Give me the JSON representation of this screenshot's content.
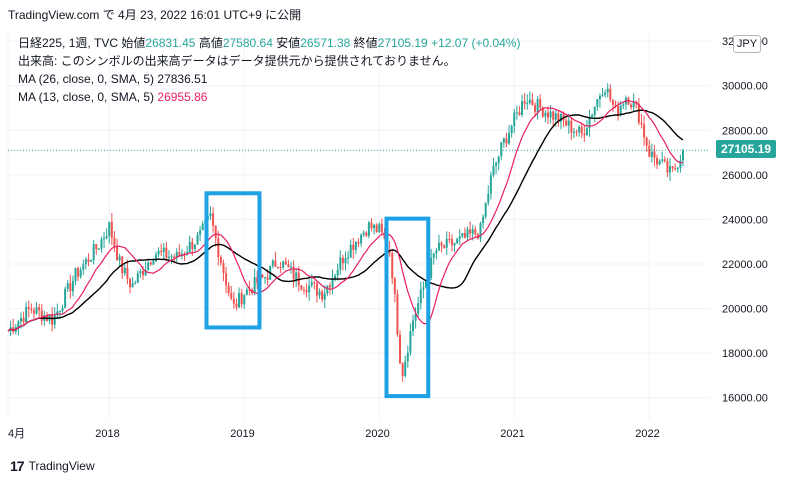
{
  "header": {
    "title_line": "TradingView.com で 4月 23, 2022 16:01 UTC+9 に公開"
  },
  "legend": {
    "symbol": "日経225, 1週, TVC",
    "open_label": "始値",
    "open": "26831.45",
    "high_label": "高値",
    "high": "27580.64",
    "low_label": "安値",
    "low": "26571.38",
    "close_label": "終値",
    "close": "27105.19",
    "change": "+12.07 (+0.04%)",
    "volume_note": "出来高: このシンボルの出来高データはデータ提供元から提供されておりません。",
    "ma26_label": "MA (26, close, 0, SMA, 5)",
    "ma26_value": "27836.51",
    "ma13_label": "MA (13, close, 0, SMA, 5)",
    "ma13_value": "26955.86"
  },
  "currency_button": "JPY",
  "last_price_tag": "27105.19",
  "footer": {
    "brand": "TradingView",
    "logo": "17"
  },
  "colors": {
    "up": "#26a69a",
    "down": "#ef5350",
    "ma26": "#000000",
    "ma13": "#e91e63",
    "highlight_box": "#1ea2e6"
  },
  "chart_data": {
    "type": "candlestick",
    "interval": "weekly",
    "currency": "JPY",
    "ylim": [
      15000,
      32500
    ],
    "y_ticks": [
      "16000.00",
      "18000.00",
      "20000.00",
      "22000.00",
      "24000.00",
      "26000.00",
      "28000.00",
      "30000.00",
      "32000.00"
    ],
    "x_ticks": [
      "4月",
      "2018",
      "2019",
      "2020",
      "2021",
      "2022"
    ],
    "last_close": 27105.19,
    "series": [
      {
        "name": "日経225 close (approx)",
        "points": [
          [
            "2017-04",
            19000
          ],
          [
            "2017-06",
            20000
          ],
          [
            "2017-08",
            19500
          ],
          [
            "2017-10",
            21500
          ],
          [
            "2017-12",
            22800
          ],
          [
            "2018-01",
            23700
          ],
          [
            "2018-02",
            21900
          ],
          [
            "2018-03",
            21000
          ],
          [
            "2018-05",
            22500
          ],
          [
            "2018-07",
            22300
          ],
          [
            "2018-09",
            23200
          ],
          [
            "2018-10",
            24100
          ],
          [
            "2018-11",
            22000
          ],
          [
            "2018-12",
            20000
          ],
          [
            "2019-01",
            20700
          ],
          [
            "2019-03",
            21500
          ],
          [
            "2019-04",
            22200
          ],
          [
            "2019-06",
            21200
          ],
          [
            "2019-08",
            20700
          ],
          [
            "2019-10",
            22500
          ],
          [
            "2019-12",
            23700
          ],
          [
            "2020-01",
            23500
          ],
          [
            "2020-02",
            22500
          ],
          [
            "2020-03",
            17000
          ],
          [
            "2020-04",
            19500
          ],
          [
            "2020-06",
            22600
          ],
          [
            "2020-08",
            23000
          ],
          [
            "2020-10",
            23500
          ],
          [
            "2020-11",
            26000
          ],
          [
            "2020-12",
            27400
          ],
          [
            "2021-02",
            29500
          ],
          [
            "2021-03",
            29100
          ],
          [
            "2021-05",
            28500
          ],
          [
            "2021-07",
            27800
          ],
          [
            "2021-09",
            30100
          ],
          [
            "2021-10",
            28800
          ],
          [
            "2021-11",
            29600
          ],
          [
            "2021-12",
            28800
          ],
          [
            "2022-01",
            27000
          ],
          [
            "2022-03",
            26000
          ],
          [
            "2022-04",
            27105
          ]
        ]
      },
      {
        "name": "MA (26, close, 0, SMA, 5)",
        "last": 27836.51
      },
      {
        "name": "MA (13, close, 0, SMA, 5)",
        "last": 26955.86
      }
    ],
    "highlight_regions": [
      {
        "from": "2018-10",
        "to": "2019-02"
      },
      {
        "from": "2020-02",
        "to": "2020-05"
      }
    ]
  }
}
